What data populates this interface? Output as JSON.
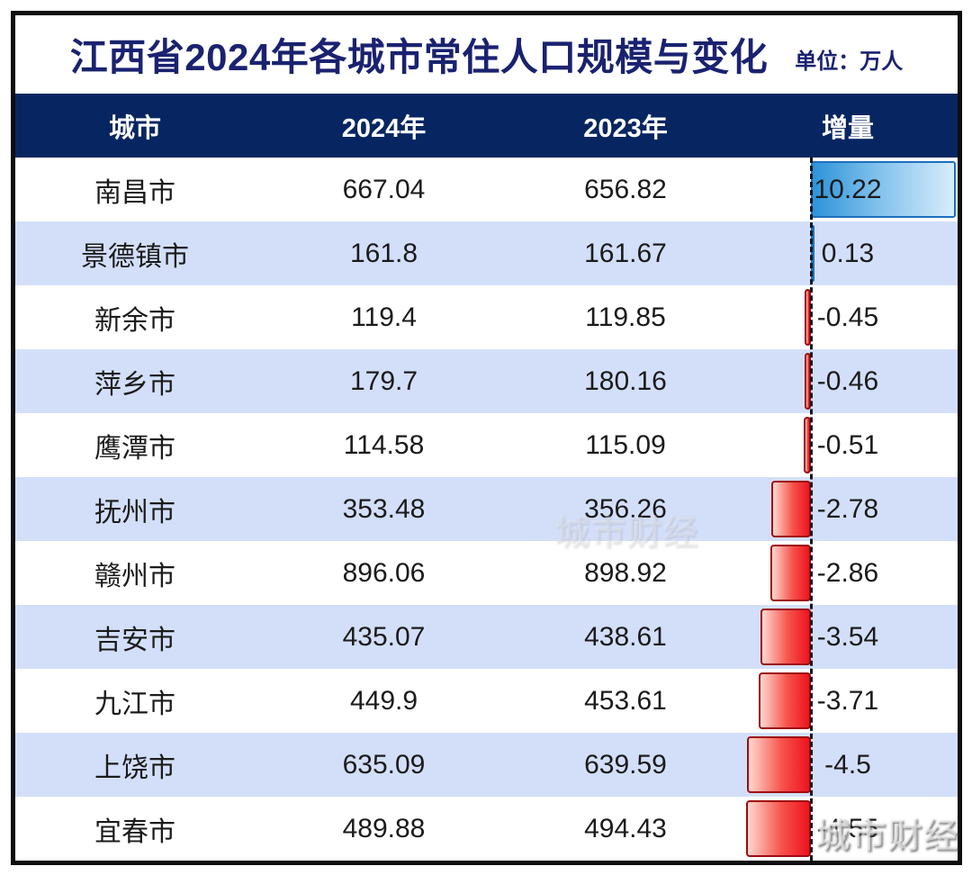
{
  "title": {
    "text": "江西省2024年各城市常住人口规模与变化",
    "unit_label": "单位：万人"
  },
  "table": {
    "columns": [
      "城市",
      "2024年",
      "2023年",
      "增量"
    ],
    "rows": [
      {
        "city": "南昌市",
        "y2024": "667.04",
        "y2023": "656.82",
        "delta": "10.22",
        "delta_value": 10.22
      },
      {
        "city": "景德镇市",
        "y2024": "161.8",
        "y2023": "161.67",
        "delta": "0.13",
        "delta_value": 0.13
      },
      {
        "city": "新余市",
        "y2024": "119.4",
        "y2023": "119.85",
        "delta": "-0.45",
        "delta_value": -0.45
      },
      {
        "city": "萍乡市",
        "y2024": "179.7",
        "y2023": "180.16",
        "delta": "-0.46",
        "delta_value": -0.46
      },
      {
        "city": "鹰潭市",
        "y2024": "114.58",
        "y2023": "115.09",
        "delta": "-0.51",
        "delta_value": -0.51
      },
      {
        "city": "抚州市",
        "y2024": "353.48",
        "y2023": "356.26",
        "delta": "-2.78",
        "delta_value": -2.78
      },
      {
        "city": "赣州市",
        "y2024": "896.06",
        "y2023": "898.92",
        "delta": "-2.86",
        "delta_value": -2.86
      },
      {
        "city": "吉安市",
        "y2024": "435.07",
        "y2023": "438.61",
        "delta": "-3.54",
        "delta_value": -3.54
      },
      {
        "city": "九江市",
        "y2024": "449.9",
        "y2023": "453.61",
        "delta": "-3.71",
        "delta_value": -3.71
      },
      {
        "city": "上饶市",
        "y2024": "635.09",
        "y2023": "639.59",
        "delta": "-4.5",
        "delta_value": -4.5
      },
      {
        "city": "宜春市",
        "y2024": "489.88",
        "y2023": "494.43",
        "delta": "-4.55",
        "delta_value": -4.55
      }
    ]
  },
  "watermark": "城市财经",
  "colors": {
    "title_text": "#1a2270",
    "header_bg": "#072661",
    "header_text": "#ffffff",
    "alt_row_bg": "#d3dff9",
    "body_text": "#1b1b1b",
    "positive_bar": "#2e93d9",
    "negative_bar": "#ee131f",
    "frame_border": "#0e0e10"
  },
  "chart_data": {
    "type": "bar",
    "title": "江西省2024年各城市常住人口规模与变化",
    "unit": "万人",
    "categories": [
      "南昌市",
      "景德镇市",
      "新余市",
      "萍乡市",
      "鹰潭市",
      "抚州市",
      "赣州市",
      "吉安市",
      "九江市",
      "上饶市",
      "宜春市"
    ],
    "series": [
      {
        "name": "2024年",
        "values": [
          667.04,
          161.8,
          119.4,
          179.7,
          114.58,
          353.48,
          896.06,
          435.07,
          449.9,
          635.09,
          489.88
        ]
      },
      {
        "name": "2023年",
        "values": [
          656.82,
          161.67,
          119.85,
          180.16,
          115.09,
          356.26,
          898.92,
          438.61,
          453.61,
          639.59,
          494.43
        ]
      },
      {
        "name": "增量",
        "values": [
          10.22,
          0.13,
          -0.45,
          -0.46,
          -0.51,
          -2.78,
          -2.86,
          -3.54,
          -3.71,
          -4.5,
          -4.55
        ]
      }
    ],
    "bar_series_shown": "增量",
    "orientation": "horizontal",
    "zero_axis": "dashed vertical line",
    "positive_color": "#2e93d9",
    "negative_color": "#ee131f",
    "legend_position": "none",
    "grid": false
  }
}
